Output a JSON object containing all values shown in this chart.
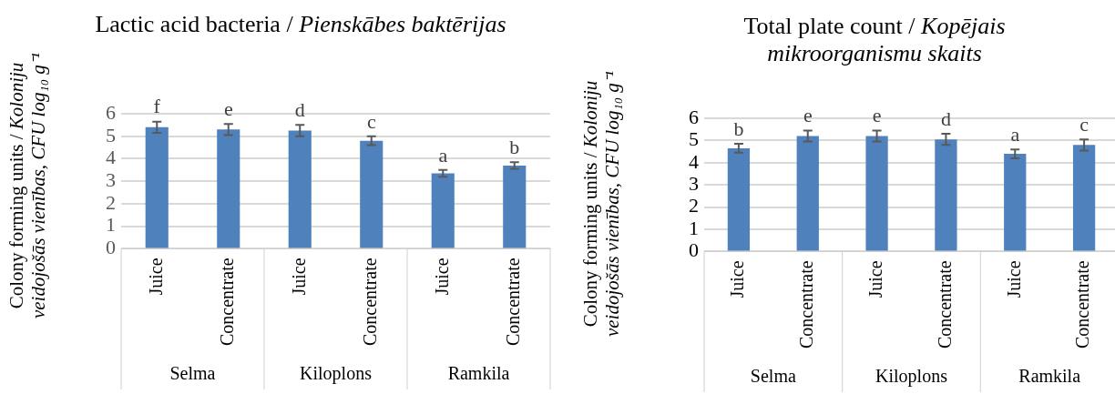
{
  "chart_data": [
    {
      "type": "bar",
      "title": "Lactic acid bacteria / Pienskābes baktērijas",
      "ylabel": "Colony forming units / Koloniju veidojošās vienības, CFU log₁₀ g⁻¹",
      "categories": [
        "Juice",
        "Concentrate",
        "Juice",
        "Concentrate",
        "Juice",
        "Concentrate"
      ],
      "values": [
        5.4,
        5.3,
        5.25,
        4.8,
        3.35,
        3.7
      ],
      "errors": [
        0.25,
        0.25,
        0.25,
        0.2,
        0.15,
        0.15
      ],
      "value_labels": [
        "f",
        "e",
        "d",
        "c",
        "a",
        "b"
      ],
      "color": "#4f81bd",
      "annotations": [
        "Selma",
        "Kiloplons",
        "Ramkila"
      ],
      "ylim": [
        0,
        6
      ],
      "yticks": [
        0,
        1,
        2,
        3,
        4,
        5,
        6
      ],
      "grid": "y"
    },
    {
      "type": "bar",
      "title": "Total plate count / Kopējais mikroorganismu skaits",
      "ylabel": "Colony forming units / Koloniju veidojošās vienības, CFU log₁₀ g⁻¹",
      "categories": [
        "Juice",
        "Concentrate",
        "Juice",
        "Concentrate",
        "Juice",
        "Concentrate"
      ],
      "values": [
        4.65,
        5.2,
        5.2,
        5.05,
        4.4,
        4.8
      ],
      "errors": [
        0.2,
        0.25,
        0.25,
        0.25,
        0.2,
        0.25
      ],
      "value_labels": [
        "b",
        "e",
        "e",
        "d",
        "a",
        "c"
      ],
      "color": "#4f81bd",
      "annotations": [
        "Selma",
        "Kiloplons",
        "Ramkila"
      ],
      "ylim": [
        0,
        6
      ],
      "yticks": [
        0,
        1,
        2,
        3,
        4,
        5,
        6
      ],
      "grid": "y"
    }
  ]
}
